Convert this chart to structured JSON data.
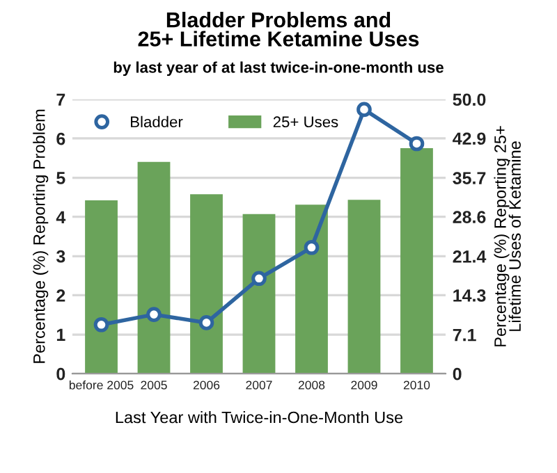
{
  "chart_data": {
    "type": "bar",
    "title": "Bladder Problems and\n25+ Lifetime Ketamine Uses",
    "subtitle": "by last year of at last twice-in-one-month use",
    "xlabel": "Last Year with Twice-in-One-Month Use",
    "ylabel": "Percentage (%) Reporting Problem",
    "y2label": "Percentage (%) Reporting 25+\nLifetime Uses of Ketamine",
    "categories": [
      "before 2005",
      "2005",
      "2006",
      "2007",
      "2008",
      "2009",
      "2010"
    ],
    "series": [
      {
        "name": "Bladder",
        "type": "line",
        "color": "#2e65a0",
        "marker": "circle",
        "values": [
          1.25,
          1.51,
          1.3,
          2.43,
          3.22,
          6.74,
          5.87
        ]
      },
      {
        "name": "25+ Uses",
        "axis": "y2",
        "color": "#6aa35a",
        "values": [
          31.6,
          38.6,
          32.7,
          29.1,
          30.8,
          31.7,
          41.1
        ]
      }
    ],
    "ylim": [
      0,
      7
    ],
    "yticks": [
      0,
      1,
      2,
      3,
      4,
      5,
      6,
      7
    ],
    "y2lim": [
      0,
      50
    ],
    "y2ticks": [
      0,
      7.1,
      14.3,
      21.4,
      28.6,
      35.7,
      42.9,
      {
        "value": 50,
        "label": "50.0"
      }
    ],
    "grid": "y",
    "legend": "top left"
  }
}
